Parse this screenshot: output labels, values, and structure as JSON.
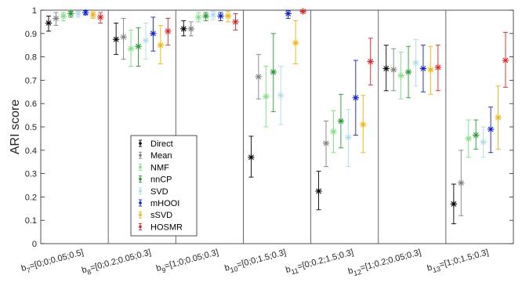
{
  "chart_data": {
    "type": "scatter",
    "title": "",
    "ylabel": "ARI score",
    "xlabel": "",
    "ylim": [
      0,
      1
    ],
    "yticks": [
      "0",
      "0.1",
      "0.2",
      "0.3",
      "0.4",
      "0.5",
      "0.6",
      "0.7",
      "0.8",
      "0.9",
      "1"
    ],
    "categories": [
      {
        "main": "b",
        "sub": "7",
        "rest": "=[0;0;0.05;0.5]"
      },
      {
        "main": "b",
        "sub": "8",
        "rest": "=[0;0.2;0.05;0.3]"
      },
      {
        "main": "b",
        "sub": "9",
        "rest": "=[1;0;0.05;0.3]"
      },
      {
        "main": "b",
        "sub": "10",
        "rest": "=[0;0;1.5;0.3]"
      },
      {
        "main": "b",
        "sub": "11",
        "rest": "=[0;0.2;1.5;0.3]"
      },
      {
        "main": "b",
        "sub": "12",
        "rest": "=[1;0.2;0.05;0.3]"
      },
      {
        "main": "b",
        "sub": "13",
        "rest": "=[1;0;1.5;0.3]"
      }
    ],
    "legend_position": "center-left",
    "series": [
      {
        "name": "Direct",
        "color": "#000000",
        "values": [
          0.945,
          0.875,
          0.92,
          0.37,
          0.225,
          0.75,
          0.17
        ],
        "low": [
          0.91,
          0.81,
          0.89,
          0.285,
          0.145,
          0.655,
          0.085
        ],
        "high": [
          0.975,
          0.945,
          0.955,
          0.46,
          0.31,
          0.85,
          0.255
        ]
      },
      {
        "name": "Mean",
        "color": "#808080",
        "values": [
          0.965,
          0.885,
          0.92,
          0.715,
          0.43,
          0.745,
          0.26
        ],
        "low": [
          0.935,
          0.79,
          0.89,
          0.62,
          0.33,
          0.655,
          0.12
        ],
        "high": [
          0.99,
          0.965,
          0.95,
          0.81,
          0.525,
          0.835,
          0.4
        ]
      },
      {
        "name": "NMF",
        "color": "#7be27b",
        "values": [
          0.975,
          0.835,
          0.97,
          0.63,
          0.48,
          0.72,
          0.45
        ],
        "low": [
          0.955,
          0.76,
          0.95,
          0.5,
          0.39,
          0.62,
          0.37
        ],
        "high": [
          0.99,
          0.915,
          0.99,
          0.76,
          0.57,
          0.82,
          0.53
        ]
      },
      {
        "name": "nnCP",
        "color": "#1f9e2a",
        "values": [
          0.985,
          0.845,
          0.975,
          0.735,
          0.525,
          0.735,
          0.465
        ],
        "low": [
          0.97,
          0.76,
          0.955,
          0.565,
          0.41,
          0.625,
          0.405
        ],
        "high": [
          0.995,
          0.925,
          0.99,
          0.9,
          0.64,
          0.845,
          0.53
        ]
      },
      {
        "name": "SVD",
        "color": "#aadcf0",
        "values": [
          0.985,
          0.87,
          0.98,
          0.635,
          0.455,
          0.775,
          0.435
        ],
        "low": [
          0.97,
          0.79,
          0.96,
          0.51,
          0.33,
          0.675,
          0.37
        ],
        "high": [
          0.995,
          0.945,
          0.995,
          0.76,
          0.575,
          0.875,
          0.5
        ]
      },
      {
        "name": "mHOOI",
        "color": "#0a1ee6",
        "values": [
          0.99,
          0.9,
          0.975,
          0.985,
          0.625,
          0.75,
          0.49
        ],
        "low": [
          0.98,
          0.825,
          0.955,
          0.965,
          0.465,
          0.65,
          0.39
        ],
        "high": [
          0.998,
          0.97,
          0.99,
          0.998,
          0.785,
          0.85,
          0.585
        ]
      },
      {
        "name": "sSVD",
        "color": "#f5b400",
        "values": [
          0.98,
          0.85,
          0.975,
          0.86,
          0.51,
          0.745,
          0.54
        ],
        "low": [
          0.965,
          0.77,
          0.95,
          0.77,
          0.39,
          0.64,
          0.405
        ],
        "high": [
          0.993,
          0.935,
          0.995,
          0.955,
          0.635,
          0.845,
          0.675
        ]
      },
      {
        "name": "HOSMR",
        "color": "#e81e1e",
        "values": [
          0.97,
          0.91,
          0.95,
          0.995,
          0.78,
          0.755,
          0.785
        ],
        "low": [
          0.945,
          0.85,
          0.915,
          0.99,
          0.68,
          0.655,
          0.67
        ],
        "high": [
          0.99,
          0.965,
          0.985,
          0.999,
          0.88,
          0.85,
          0.905
        ]
      }
    ]
  }
}
